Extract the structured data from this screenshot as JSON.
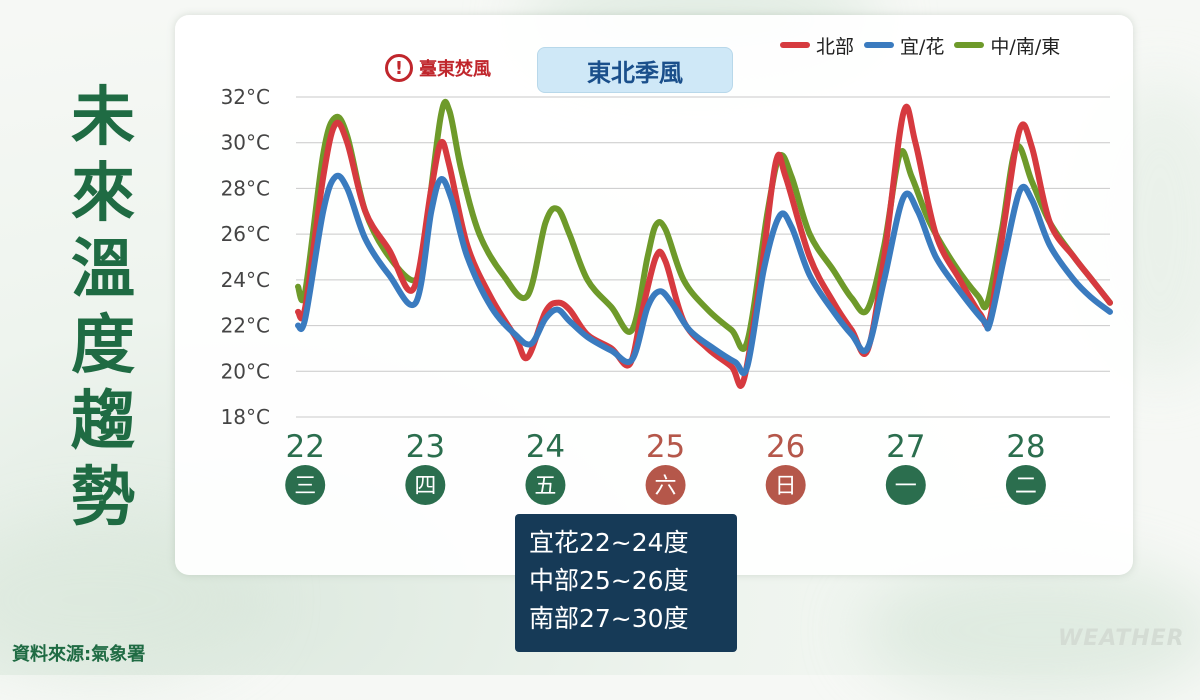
{
  "title": "未來溫度趨勢",
  "source": "資料來源:氣象署",
  "watermark": "WEATHER",
  "alert": {
    "label": "臺東焚風",
    "icon": "exclamation-circle-icon",
    "color": "#c0262c"
  },
  "season_label": "東北季風",
  "note_lines": [
    "宜花22~24度",
    "中部25~26度",
    "南部27~30度"
  ],
  "chart_data": {
    "type": "line",
    "ylim": [
      18,
      32
    ],
    "yticks": [
      18,
      20,
      22,
      24,
      26,
      28,
      30,
      32
    ],
    "yunit": "°C",
    "legend_position": "top-right",
    "grid": true,
    "x_unit": "day (22–28.7)",
    "days": [
      {
        "date": "22",
        "weekday": "三",
        "color": "#2b6e4e"
      },
      {
        "date": "23",
        "weekday": "四",
        "color": "#2b6e4e"
      },
      {
        "date": "24",
        "weekday": "五",
        "color": "#2b6e4e"
      },
      {
        "date": "25",
        "weekday": "六",
        "color": "#b5574a"
      },
      {
        "date": "26",
        "weekday": "日",
        "color": "#b5574a"
      },
      {
        "date": "27",
        "weekday": "一",
        "color": "#2b6e4e"
      },
      {
        "date": "28",
        "weekday": "二",
        "color": "#2b6e4e"
      }
    ],
    "series": [
      {
        "name": "中/南/東",
        "color": "#6e9a2a",
        "points": [
          [
            21.94,
            23.7
          ],
          [
            22.0,
            23.5
          ],
          [
            22.15,
            29.5
          ],
          [
            22.25,
            31.1
          ],
          [
            22.35,
            30.3
          ],
          [
            22.5,
            27.0
          ],
          [
            22.7,
            25.0
          ],
          [
            22.92,
            24.0
          ],
          [
            23.0,
            26.0
          ],
          [
            23.13,
            31.2
          ],
          [
            23.2,
            31.4
          ],
          [
            23.3,
            28.8
          ],
          [
            23.45,
            26.0
          ],
          [
            23.65,
            24.2
          ],
          [
            23.85,
            23.3
          ],
          [
            24.0,
            26.5
          ],
          [
            24.1,
            27.1
          ],
          [
            24.2,
            26.0
          ],
          [
            24.35,
            24.0
          ],
          [
            24.55,
            22.8
          ],
          [
            24.72,
            21.8
          ],
          [
            24.85,
            25.0
          ],
          [
            24.92,
            26.4
          ],
          [
            25.0,
            26.2
          ],
          [
            25.15,
            24.0
          ],
          [
            25.35,
            22.7
          ],
          [
            25.55,
            21.8
          ],
          [
            25.68,
            21.3
          ],
          [
            25.85,
            27.0
          ],
          [
            25.95,
            29.4
          ],
          [
            26.05,
            28.5
          ],
          [
            26.2,
            26.0
          ],
          [
            26.4,
            24.4
          ],
          [
            26.55,
            23.2
          ],
          [
            26.68,
            22.7
          ],
          [
            26.82,
            25.5
          ],
          [
            26.95,
            29.5
          ],
          [
            27.05,
            28.5
          ],
          [
            27.2,
            26.5
          ],
          [
            27.4,
            24.7
          ],
          [
            27.6,
            23.3
          ],
          [
            27.68,
            23.0
          ],
          [
            27.8,
            26.2
          ],
          [
            27.92,
            29.8
          ],
          [
            28.05,
            28.3
          ],
          [
            28.2,
            26.5
          ],
          [
            28.4,
            25.0
          ],
          [
            28.55,
            24.0
          ],
          [
            28.7,
            23.0
          ]
        ]
      },
      {
        "name": "北部",
        "color": "#d63a3f",
        "points": [
          [
            21.94,
            22.6
          ],
          [
            22.0,
            22.8
          ],
          [
            22.15,
            28.5
          ],
          [
            22.25,
            30.8
          ],
          [
            22.35,
            30.0
          ],
          [
            22.5,
            27.0
          ],
          [
            22.7,
            25.3
          ],
          [
            22.9,
            23.6
          ],
          [
            23.05,
            28.0
          ],
          [
            23.13,
            30.0
          ],
          [
            23.2,
            29.0
          ],
          [
            23.35,
            25.5
          ],
          [
            23.55,
            23.2
          ],
          [
            23.75,
            21.5
          ],
          [
            23.85,
            20.6
          ],
          [
            24.0,
            22.6
          ],
          [
            24.1,
            23.0
          ],
          [
            24.2,
            22.7
          ],
          [
            24.35,
            21.6
          ],
          [
            24.55,
            21.0
          ],
          [
            24.7,
            20.3
          ],
          [
            24.8,
            22.5
          ],
          [
            24.92,
            25.0
          ],
          [
            25.0,
            24.8
          ],
          [
            25.15,
            22.2
          ],
          [
            25.35,
            21.0
          ],
          [
            25.55,
            20.2
          ],
          [
            25.65,
            19.6
          ],
          [
            25.8,
            24.5
          ],
          [
            25.92,
            29.2
          ],
          [
            26.0,
            28.5
          ],
          [
            26.2,
            25.0
          ],
          [
            26.4,
            23.0
          ],
          [
            26.55,
            21.8
          ],
          [
            26.68,
            20.9
          ],
          [
            26.82,
            25.0
          ],
          [
            26.98,
            31.3
          ],
          [
            27.08,
            30.0
          ],
          [
            27.25,
            26.0
          ],
          [
            27.45,
            24.0
          ],
          [
            27.62,
            22.5
          ],
          [
            27.7,
            22.3
          ],
          [
            27.82,
            26.5
          ],
          [
            27.95,
            30.6
          ],
          [
            28.05,
            29.8
          ],
          [
            28.2,
            26.5
          ],
          [
            28.4,
            25.0
          ],
          [
            28.55,
            24.0
          ],
          [
            28.7,
            23.0
          ]
        ]
      },
      {
        "name": "宜/花",
        "color": "#3a7bbf",
        "points": [
          [
            21.94,
            22.0
          ],
          [
            22.0,
            22.3
          ],
          [
            22.15,
            27.0
          ],
          [
            22.25,
            28.5
          ],
          [
            22.35,
            28.0
          ],
          [
            22.5,
            25.8
          ],
          [
            22.7,
            24.2
          ],
          [
            22.92,
            23.0
          ],
          [
            23.05,
            27.0
          ],
          [
            23.13,
            28.4
          ],
          [
            23.22,
            27.5
          ],
          [
            23.35,
            25.0
          ],
          [
            23.55,
            22.8
          ],
          [
            23.75,
            21.6
          ],
          [
            23.88,
            21.2
          ],
          [
            24.0,
            22.3
          ],
          [
            24.1,
            22.7
          ],
          [
            24.2,
            22.2
          ],
          [
            24.35,
            21.5
          ],
          [
            24.55,
            20.9
          ],
          [
            24.72,
            20.5
          ],
          [
            24.85,
            22.8
          ],
          [
            24.95,
            23.5
          ],
          [
            25.05,
            23.0
          ],
          [
            25.2,
            21.8
          ],
          [
            25.4,
            21.0
          ],
          [
            25.58,
            20.4
          ],
          [
            25.68,
            20.2
          ],
          [
            25.82,
            24.5
          ],
          [
            25.95,
            26.8
          ],
          [
            26.05,
            26.3
          ],
          [
            26.2,
            24.2
          ],
          [
            26.4,
            22.6
          ],
          [
            26.55,
            21.6
          ],
          [
            26.68,
            21.0
          ],
          [
            26.82,
            24.0
          ],
          [
            26.98,
            27.6
          ],
          [
            27.1,
            27.0
          ],
          [
            27.25,
            25.0
          ],
          [
            27.45,
            23.5
          ],
          [
            27.65,
            22.2
          ],
          [
            27.7,
            22.1
          ],
          [
            27.82,
            25.0
          ],
          [
            27.95,
            27.9
          ],
          [
            28.05,
            27.5
          ],
          [
            28.2,
            25.5
          ],
          [
            28.4,
            24.0
          ],
          [
            28.55,
            23.2
          ],
          [
            28.7,
            22.6
          ]
        ]
      }
    ]
  }
}
